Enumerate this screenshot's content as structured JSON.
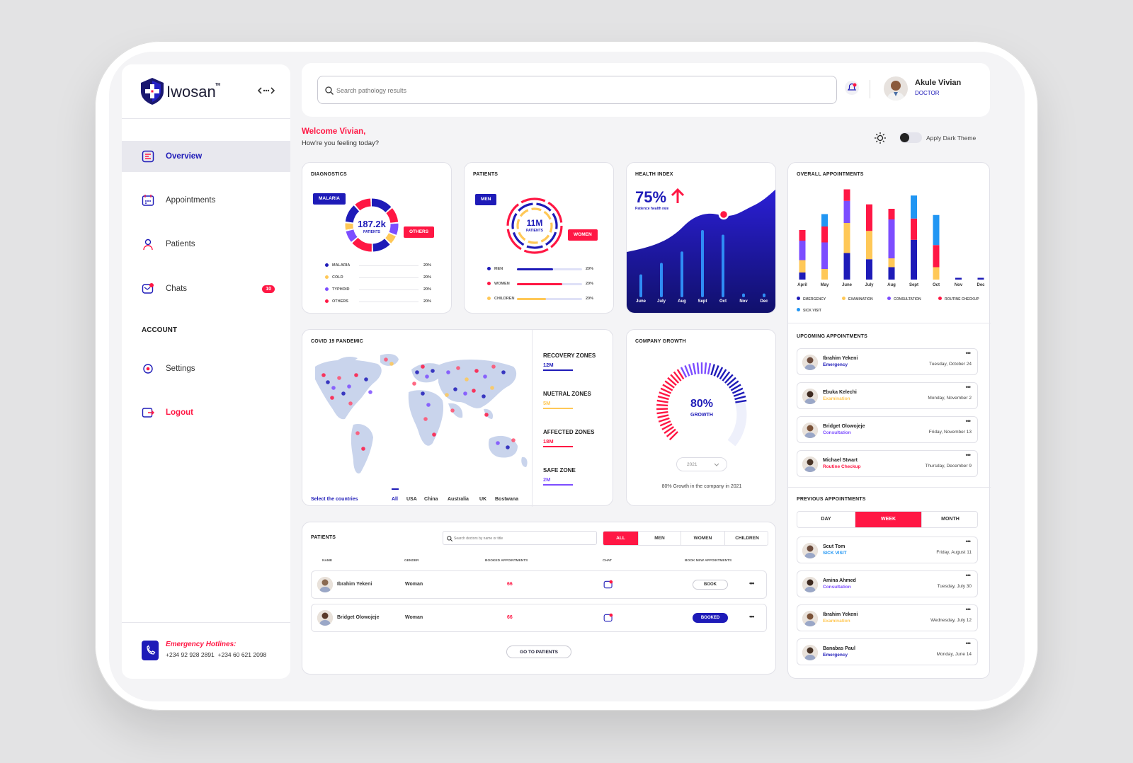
{
  "app": {
    "name": "Iwosan",
    "tm": "TM"
  },
  "search": {
    "placeholder": "Search pathology results"
  },
  "user": {
    "name": "Akule Vivian",
    "role": "DOCTOR"
  },
  "welcome": {
    "greeting": "Welcome Vivian,",
    "subtitle": "How're you feeling today?"
  },
  "theme": {
    "label": "Apply Dark Theme"
  },
  "nav": {
    "overview": "Overview",
    "appointments": "Appointments",
    "patients": "Patients",
    "chats": "Chats",
    "chats_badge": "10",
    "account_heading": "ACCOUNT",
    "settings": "Settings",
    "logout": "Logout"
  },
  "emergency": {
    "title": "Emergency Hotlines:",
    "numbers": "+234 92 928 2891  +234 60 621 2098"
  },
  "diagnostics": {
    "title": "DIAGNOSTICS",
    "center_value": "187.2k",
    "center_label": "PATIENTS",
    "tag_left": "MALARIA",
    "tag_right": "OTHERS",
    "legend": [
      {
        "label": "MALARIA",
        "value": "20%",
        "color": "#1e1bb8"
      },
      {
        "label": "COLD",
        "value": "20%",
        "color": "#ffc857"
      },
      {
        "label": "TYPHOID",
        "value": "20%",
        "color": "#7c4dff"
      },
      {
        "label": "OTHERS",
        "value": "20%",
        "color": "#ff1744"
      }
    ]
  },
  "patients_card": {
    "title": "PATIENTS",
    "center_value": "11M",
    "center_label": "PATIENTS",
    "tag_left": "MEN",
    "tag_right": "WOMEN",
    "legend": [
      {
        "label": "MEN",
        "value": "20%",
        "color": "#1e1bb8",
        "fill": 0.55
      },
      {
        "label": "WOMEN",
        "value": "20%",
        "color": "#ff1744",
        "fill": 0.7
      },
      {
        "label": "CHILDREN",
        "value": "20%",
        "color": "#ffc857",
        "fill": 0.45
      }
    ]
  },
  "health_index": {
    "title": "HEALTH INDEX",
    "value": "75%",
    "subtitle": "Patience health rate",
    "months": [
      "June",
      "July",
      "Aug",
      "Sept",
      "Oct",
      "Nov",
      "Dec"
    ],
    "bars": [
      0.3,
      0.45,
      0.6,
      0.88,
      0.82,
      0.05,
      0.05
    ]
  },
  "overall": {
    "title": "OVERALL APPOINTMENTS",
    "chart_data": {
      "type": "bar",
      "stacked": true,
      "categories": [
        "April",
        "May",
        "June",
        "July",
        "Aug",
        "Sept",
        "Oct",
        "Nov",
        "Dec"
      ],
      "series": [
        {
          "name": "EMERGENCY",
          "color": "#1e1bb8",
          "values": [
            0.08,
            0,
            0.3,
            0.23,
            0.14,
            0.45,
            0,
            0.02,
            0.02
          ]
        },
        {
          "name": "EXAMINATION",
          "color": "#ffc857",
          "values": [
            0.14,
            0.12,
            0.34,
            0.32,
            0.1,
            0,
            0.14,
            0,
            0
          ]
        },
        {
          "name": "CONSULTATION",
          "color": "#7c4dff",
          "values": [
            0.22,
            0.3,
            0.25,
            0,
            0.44,
            0,
            0,
            0,
            0
          ]
        },
        {
          "name": "ROUTINE CHECKUP",
          "color": "#ff1744",
          "values": [
            0.12,
            0.18,
            0.13,
            0.3,
            0.12,
            0.24,
            0.25,
            0,
            0
          ]
        },
        {
          "name": "SICK VISIT",
          "color": "#2196f3",
          "values": [
            0,
            0.14,
            0,
            0,
            0,
            0.26,
            0.34,
            0,
            0
          ]
        }
      ]
    }
  },
  "covid": {
    "title": "COVID 19 PANDEMIC",
    "select_label": "Select the countries",
    "countries": [
      "All",
      "USA",
      "China",
      "Australia",
      "UK",
      "Bostwana"
    ],
    "zones": [
      {
        "name": "RECOVERY ZONES",
        "value": "12M",
        "color": "#1e1bb8"
      },
      {
        "name": "NUETRAL ZONES",
        "value": "5M",
        "color": "#ffc857"
      },
      {
        "name": "AFFECTED ZONES",
        "value": "18M",
        "color": "#ff1744"
      },
      {
        "name": "SAFE ZONE",
        "value": "2M",
        "color": "#7c4dff"
      }
    ]
  },
  "growth": {
    "title": "COMPANY GROWTH",
    "value": "80%",
    "label": "GROWTH",
    "year": "2021",
    "caption": "80% Growth in the company in 2021",
    "fraction": 0.8
  },
  "upcoming": {
    "title": "UPCOMING APPOINTMENTS",
    "items": [
      {
        "name": "Ibrahim Yekeni",
        "type": "Emergency",
        "color": "#1e1bb8",
        "date": "Tuesday, October 24"
      },
      {
        "name": "Ebuka Kelechi",
        "type": "Examination",
        "color": "#ffc857",
        "date": "Monday, November 2"
      },
      {
        "name": "Bridget Olowojeje",
        "type": "Consultation",
        "color": "#7c4dff",
        "date": "Friday, November 13"
      },
      {
        "name": "Michael Stwart",
        "type": "Routine Checkup",
        "color": "#ff1744",
        "date": "Thursday, December 9"
      }
    ]
  },
  "previous": {
    "title": "PREVIOUS APPOINTMENTS",
    "tabs": [
      "DAY",
      "WEEK",
      "MONTH"
    ],
    "items": [
      {
        "name": "Scut Tom",
        "type": "SICK VISIT",
        "color": "#2196f3",
        "date": "Friday, August 11"
      },
      {
        "name": "Amina Ahmed",
        "type": "Consultation",
        "color": "#7c4dff",
        "date": "Tuesday, July 30"
      },
      {
        "name": "Ibrahim Yekeni",
        "type": "Examination",
        "color": "#ffc857",
        "date": "Wednesday, July 12"
      },
      {
        "name": "Banabas Paul",
        "type": "Emergency",
        "color": "#1e1bb8",
        "date": "Monday, June 14"
      }
    ]
  },
  "patients_table": {
    "title": "PATIENTS",
    "search_placeholder": "Search doctors by name or title",
    "filters": [
      "ALL",
      "MEN",
      "WOMEN",
      "CHILDREN"
    ],
    "headers": {
      "name": "NAME",
      "gender": "GENDER",
      "booked": "BOOKED APPOINTMENTS",
      "chat": "CHAT",
      "book": "BOOK NEW APPOINTMENTS"
    },
    "rows": [
      {
        "name": "Ibrahim Yekeni",
        "gender": "Woman",
        "booked": "66",
        "action": "BOOK"
      },
      {
        "name": "Bridget Olowojeje",
        "gender": "Woman",
        "booked": "66",
        "action": "BOOKED"
      }
    ],
    "go_button": "GO TO PATIENTS"
  }
}
